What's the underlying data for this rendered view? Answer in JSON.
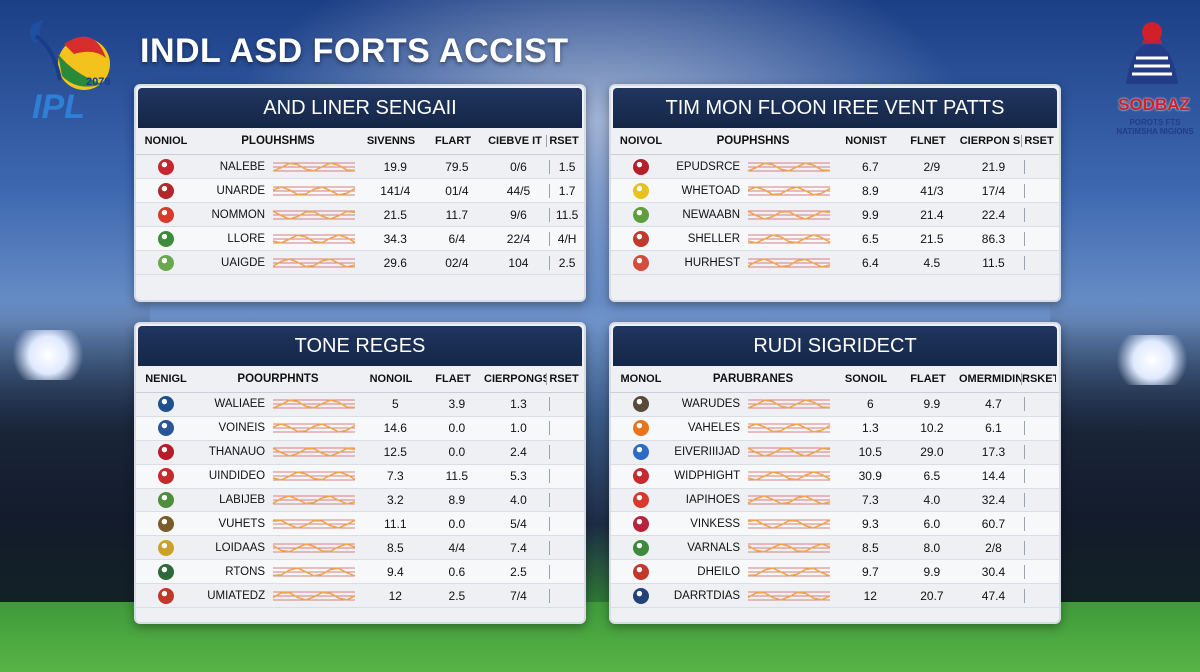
{
  "title": "INDL ASD FORTS ACCIST",
  "logo_left": {
    "text": "IPL",
    "year": "2078"
  },
  "logo_right": {
    "text": "SODBAZ",
    "sub": "POROTS FTS NATIMSHA NIGIONS"
  },
  "colors": {
    "header": "#142647",
    "accent_red": "#d0202a",
    "bar_orange": "#f2a64a"
  },
  "panels": [
    {
      "title": "AND LINER SENGAII",
      "columns": [
        "NONIOL",
        "PLOUHSHMS",
        "SIVENNS",
        "FLART",
        "CIEBVE IT",
        "RSET"
      ],
      "rows": [
        {
          "icon": "team-badge-icon",
          "icon_color": "#c8262e",
          "name": "NALEBE",
          "v1": "19.9",
          "v2": "79.5",
          "v3": "0/6",
          "v4": "1.5"
        },
        {
          "icon": "team-badge-icon",
          "icon_color": "#b3262a",
          "name": "UNARDE",
          "v1": "141/4",
          "v2": "01/4",
          "v3": "44/5",
          "v4": "1.7"
        },
        {
          "icon": "team-badge-icon",
          "icon_color": "#d8392a",
          "name": "NOMMON",
          "v1": "21.5",
          "v2": "11.7",
          "v3": "9/6",
          "v4": "11.5"
        },
        {
          "icon": "team-badge-icon",
          "icon_color": "#3c8a3a",
          "name": "LLORE",
          "v1": "34.3",
          "v2": "6/4",
          "v3": "22/4",
          "v4": "4/H"
        },
        {
          "icon": "team-badge-icon",
          "icon_color": "#6aa84f",
          "name": "UAIGDE",
          "v1": "29.6",
          "v2": "02/4",
          "v3": "104",
          "v4": "2.5"
        }
      ]
    },
    {
      "title": "TIM MON FLOON IREE VENT PATTS",
      "columns": [
        "NOIVOL",
        "POUPHSHNS",
        "NONIST",
        "FLNET",
        "CIERPON S",
        "RSET"
      ],
      "rows": [
        {
          "icon": "team-badge-icon",
          "icon_color": "#b81e2a",
          "name": "EPUDSRCE",
          "v1": "6.7",
          "v2": "2/9",
          "v3": "21.9",
          "v4": ""
        },
        {
          "icon": "team-badge-icon",
          "icon_color": "#e6c21a",
          "name": "WHETOAD",
          "v1": "8.9",
          "v2": "41/3",
          "v3": "17/4",
          "v4": ""
        },
        {
          "icon": "team-badge-icon",
          "icon_color": "#5f9e3b",
          "name": "NEWAABN",
          "v1": "9.9",
          "v2": "21.4",
          "v3": "22.4",
          "v4": ""
        },
        {
          "icon": "team-badge-icon",
          "icon_color": "#c0392b",
          "name": "SHELLER",
          "v1": "6.5",
          "v2": "21.5",
          "v3": "86.3",
          "v4": ""
        },
        {
          "icon": "team-badge-icon",
          "icon_color": "#d64b3a",
          "name": "HURHEST",
          "v1": "6.4",
          "v2": "4.5",
          "v3": "11.5",
          "v4": ""
        }
      ]
    },
    {
      "title": "TONE REGES",
      "columns": [
        "NENIGL",
        "POOURPHNTS",
        "NONOIL",
        "FLAET",
        "CIERPONGS S",
        "RSET"
      ],
      "rows": [
        {
          "icon": "team-badge-icon",
          "icon_color": "#1f4f8f",
          "name": "WALIAEE",
          "v1": "5",
          "v2": "3.9",
          "v3": "1.3",
          "v4": ""
        },
        {
          "icon": "team-badge-icon",
          "icon_color": "#2a5599",
          "name": "VOINEIS",
          "v1": "14.6",
          "v2": "0.0",
          "v3": "1.0",
          "v4": ""
        },
        {
          "icon": "team-badge-icon",
          "icon_color": "#b71c2b",
          "name": "THANAUO",
          "v1": "12.5",
          "v2": "0.0",
          "v3": "2.4",
          "v4": ""
        },
        {
          "icon": "team-badge-icon",
          "icon_color": "#c62a2f",
          "name": "UINDIDEO",
          "v1": "7.3",
          "v2": "11.5",
          "v3": "5.3",
          "v4": ""
        },
        {
          "icon": "team-badge-icon",
          "icon_color": "#4e8c3e",
          "name": "LABIJEB",
          "v1": "3.2",
          "v2": "8.9",
          "v3": "4.0",
          "v4": ""
        },
        {
          "icon": "team-badge-icon",
          "icon_color": "#7a5b2b",
          "name": "VUHETS",
          "v1": "11.1",
          "v2": "0.0",
          "v3": "5/4",
          "v4": ""
        },
        {
          "icon": "team-badge-icon",
          "icon_color": "#c9a227",
          "name": "LOIDAAS",
          "v1": "8.5",
          "v2": "4/4",
          "v3": "7.4",
          "v4": ""
        },
        {
          "icon": "team-badge-icon",
          "icon_color": "#2f6b3a",
          "name": "RTONS",
          "v1": "9.4",
          "v2": "0.6",
          "v3": "2.5",
          "v4": ""
        },
        {
          "icon": "team-badge-icon",
          "icon_color": "#c0392b",
          "name": "UMIATEDZ",
          "v1": "12",
          "v2": "2.5",
          "v3": "7/4",
          "v4": ""
        }
      ]
    },
    {
      "title": "RUDI SIGRIDECT",
      "columns": [
        "MONOL",
        "PARUBRANES",
        "SONOIL",
        "FLAET",
        "OMERMIDINS",
        "RSKET"
      ],
      "rows": [
        {
          "icon": "team-badge-icon",
          "icon_color": "#5a4a3a",
          "name": "WARUDES",
          "v1": "6",
          "v2": "9.9",
          "v3": "4.7",
          "v4": ""
        },
        {
          "icon": "team-badge-icon",
          "icon_color": "#e8741e",
          "name": "VAHELES",
          "v1": "1.3",
          "v2": "10.2",
          "v3": "6.1",
          "v4": ""
        },
        {
          "icon": "team-badge-icon",
          "icon_color": "#2b6cc4",
          "name": "EIVERIIIJAD",
          "v1": "10.5",
          "v2": "29.0",
          "v3": "17.3",
          "v4": ""
        },
        {
          "icon": "team-badge-icon",
          "icon_color": "#c62a2f",
          "name": "WIDPHIGHT",
          "v1": "30.9",
          "v2": "6.5",
          "v3": "14.4",
          "v4": ""
        },
        {
          "icon": "team-badge-icon",
          "icon_color": "#d8392a",
          "name": "IAPIHOES",
          "v1": "7.3",
          "v2": "4.0",
          "v3": "32.4",
          "v4": ""
        },
        {
          "icon": "team-badge-icon",
          "icon_color": "#b8243a",
          "name": "VINKESS",
          "v1": "9.3",
          "v2": "6.0",
          "v3": "60.7",
          "v4": ""
        },
        {
          "icon": "team-badge-icon",
          "icon_color": "#3c8a3a",
          "name": "VARNALS",
          "v1": "8.5",
          "v2": "8.0",
          "v3": "2/8",
          "v4": ""
        },
        {
          "icon": "team-badge-icon",
          "icon_color": "#c0392b",
          "name": "DHEILO",
          "v1": "9.7",
          "v2": "9.9",
          "v3": "30.4",
          "v4": ""
        },
        {
          "icon": "team-badge-icon",
          "icon_color": "#24427a",
          "name": "DARRTDIAS",
          "v1": "12",
          "v2": "20.7",
          "v3": "47.4",
          "v4": ""
        }
      ]
    }
  ]
}
